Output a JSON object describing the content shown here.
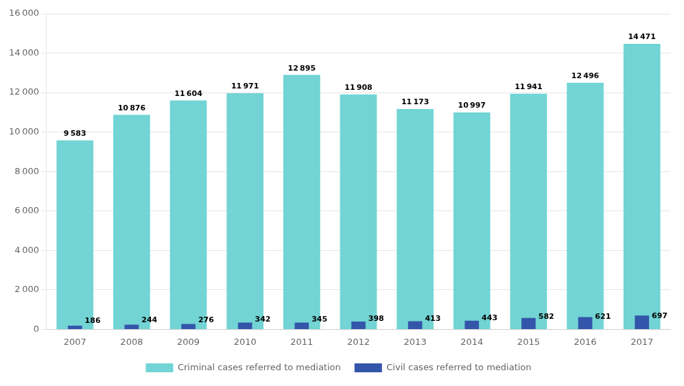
{
  "chart_data": {
    "type": "bar",
    "categories": [
      "2007",
      "2008",
      "2009",
      "2010",
      "2011",
      "2012",
      "2013",
      "2014",
      "2015",
      "2016",
      "2017"
    ],
    "series": [
      {
        "name": "Criminal cases referred to mediation",
        "color": "#72d4d4",
        "values": [
          9583,
          10876,
          11604,
          11971,
          12895,
          11908,
          11173,
          10997,
          11941,
          12496,
          14471
        ],
        "value_labels": [
          "9 583",
          "10 876",
          "11 604",
          "11 971",
          "12 895",
          "11 908",
          "11 173",
          "10 997",
          "11 941",
          "12 496",
          "14 471"
        ]
      },
      {
        "name": "Civil cases referred to mediation",
        "color": "#3355aa",
        "values": [
          186,
          244,
          276,
          342,
          345,
          398,
          413,
          443,
          582,
          621,
          697
        ]
      }
    ],
    "ylim": [
      0,
      16000
    ],
    "yticks": [
      0,
      {
        "value": 2000,
        "label": "2 000"
      },
      {
        "value": 4000,
        "label": "4 000"
      },
      {
        "value": 6000,
        "label": "6 000"
      },
      {
        "value": 8000,
        "label": "8 000"
      },
      {
        "value": 10000,
        "label": "10 000"
      },
      {
        "value": 12000,
        "label": "12 000"
      },
      {
        "value": 14000,
        "label": "14 000"
      },
      {
        "value": 16000,
        "label": "16 000"
      }
    ],
    "grid": true,
    "legend": "bottom",
    "data_labels": true
  }
}
